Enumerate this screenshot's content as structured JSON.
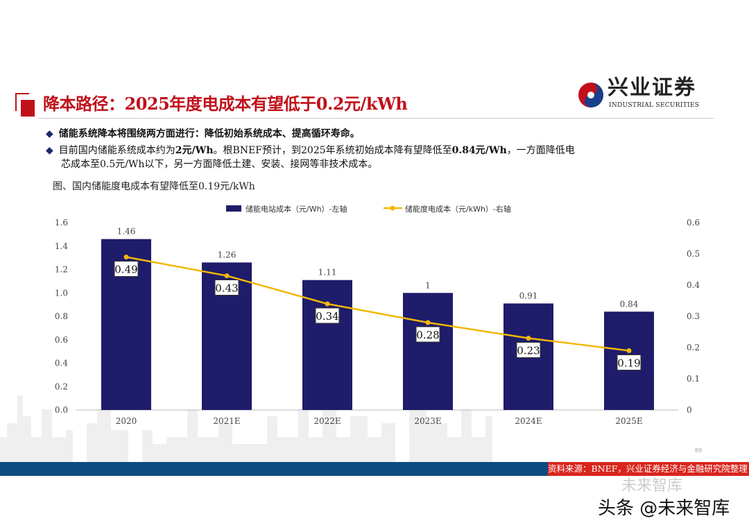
{
  "header": {
    "title": "降本路径：2025年度电成本有望低于0.2元/kWh",
    "logo_cn": "兴业证券",
    "logo_en": "INDUSTRIAL SECURITIES"
  },
  "bullets": [
    {
      "text": "储能系统降本将围绕两方面进行：降低初始系统成本、提高循环寿命。"
    },
    {
      "text_line1_parts": [
        "目前国内储能系统成本约为",
        "2元/Wh",
        "。根BNEF预计，到2025年系统初始成本降有望降低至",
        "0.84元/Wh",
        "，一方面降低电"
      ],
      "text_line2": "芯成本至0.5元/Wh以下，另一方面降低土建、安装、接网等非技术成本。"
    }
  ],
  "figure_caption": "图、国内储能度电成本有望降低至0.19元/kWh",
  "chart_data": {
    "type": "bar+line",
    "categories": [
      "2020",
      "2021E",
      "2022E",
      "2023E",
      "2024E",
      "2025E"
    ],
    "series": [
      {
        "name": "储能电站成本（元/Wh）-左轴",
        "type": "bar",
        "axis": "left",
        "values": [
          1.46,
          1.26,
          1.11,
          1,
          0.91,
          0.84
        ],
        "labels": [
          "1.46",
          "1.26",
          "1.11",
          "1",
          "0.91",
          "0.84"
        ],
        "color": "#1f1c6b"
      },
      {
        "name": "储能度电成本（元/kWh）-右轴",
        "type": "line",
        "axis": "right",
        "values": [
          0.49,
          0.43,
          0.34,
          0.28,
          0.23,
          0.19
        ],
        "labels": [
          "0.49",
          "0.43",
          "0.34",
          "0.28",
          "0.23",
          "0.19"
        ],
        "color": "#f2b705"
      }
    ],
    "left_axis": {
      "range": [
        0,
        1.6
      ],
      "ticks": [
        "0.0",
        "0.2",
        "0.4",
        "0.6",
        "0.8",
        "1.0",
        "1.2",
        "1.4",
        "1.6"
      ]
    },
    "right_axis": {
      "range": [
        0,
        0.6
      ],
      "ticks": [
        "0",
        "0.1",
        "0.2",
        "0.3",
        "0.4",
        "0.5",
        "0.6"
      ]
    },
    "legend_position": "top",
    "grid": false
  },
  "footer": {
    "source": "资料来源：BNEF，兴业证券经济与金融研究院整理",
    "page_number": "89"
  },
  "watermark": {
    "line1": "未来智库",
    "line2": "头条 @未来智库"
  }
}
